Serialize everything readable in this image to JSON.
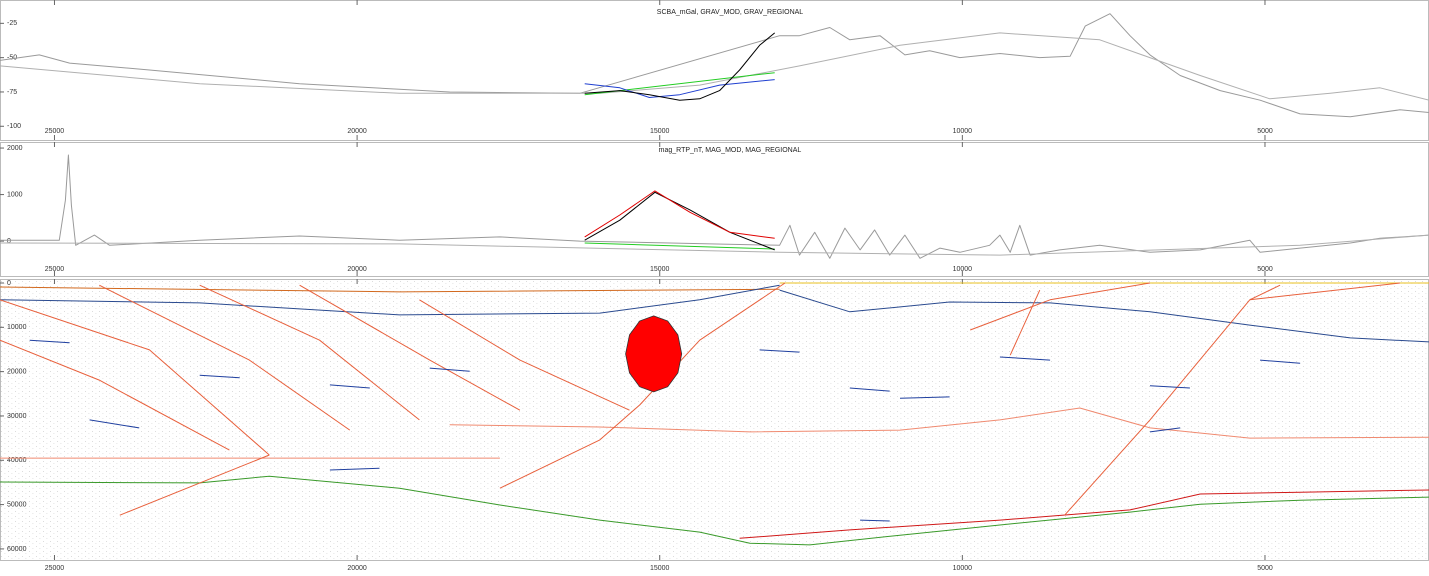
{
  "chart_data": [
    {
      "type": "line",
      "title": "SCBA_mGal, GRAV_MOD, GRAV_REGIONAL",
      "xlim": [
        25900,
        2290
      ],
      "xticks": [
        25000,
        20000,
        15000,
        10000,
        5000
      ],
      "ylim": [
        -110,
        -8
      ],
      "yticks": [
        -25,
        -50,
        -75,
        -100
      ],
      "series": [
        {
          "color": "#9a9a9a",
          "x": [
            25900,
            25250,
            24750,
            23430,
            20950,
            18470,
            16320,
            13020,
            12690,
            12190,
            11860,
            11360,
            10950,
            10540,
            10040,
            9380,
            8720,
            8220,
            7970,
            7560,
            7230,
            6900,
            6400,
            5740,
            5080,
            4420,
            3590,
            2770,
            2290
          ],
          "values": [
            -52,
            -48,
            -54,
            -59,
            -69,
            -75,
            -76,
            -34,
            -34,
            -28,
            -37,
            -34,
            -48,
            -45,
            -50,
            -47,
            -50,
            -49,
            -27,
            -18,
            -34,
            -48,
            -63,
            -74,
            -81,
            -91,
            -93,
            -88,
            -90
          ]
        },
        {
          "color": "#b0b0b0",
          "x": [
            25900,
            22600,
            19300,
            15990,
            14340,
            12690,
            11030,
            9380,
            7730,
            6070,
            4920,
            3920,
            3100,
            2290
          ],
          "values": [
            -56,
            -69,
            -76,
            -76,
            -70,
            -56,
            -41,
            -32,
            -37,
            -63,
            -80,
            -76,
            -72,
            -81
          ]
        },
        {
          "color": "#22cc22",
          "x": [
            16240,
            13100
          ],
          "values": [
            -77,
            -61
          ]
        },
        {
          "color": "#1f3fd0",
          "x": [
            16240,
            15660,
            15170,
            14670,
            14010,
            13100
          ],
          "values": [
            -69,
            -72,
            -79,
            -77,
            -70,
            -66
          ]
        },
        {
          "color": "#000000",
          "x": [
            16240,
            15660,
            15170,
            14670,
            14340,
            14010,
            13680,
            13350,
            13100
          ],
          "values": [
            -76,
            -74,
            -77,
            -81,
            -80,
            -74,
            -59,
            -41,
            -32
          ]
        }
      ]
    },
    {
      "type": "line",
      "title": "mag_RTP_nT, MAG_MOD, MAG_REGIONAL",
      "xlim": [
        25900,
        2290
      ],
      "xticks": [
        25000,
        20000,
        15000,
        10000,
        5000
      ],
      "ylim": [
        -750,
        2130
      ],
      "yticks": [
        0,
        1000,
        2000
      ],
      "series": [
        {
          "color": "#9a9a9a",
          "x": [
            25900,
            24920,
            24820,
            24770,
            24720,
            24650,
            24340,
            24090,
            22600,
            20950,
            19300,
            17640,
            16320,
            13020,
            12850,
            12690,
            12440,
            12190,
            11940,
            11690,
            11450,
            11200,
            10950,
            10700,
            10370,
            10040,
            9550,
            9380,
            9210,
            9050,
            8880,
            8390,
            7730,
            6900,
            6070,
            5250,
            5080,
            4420,
            3590,
            3100,
            2290
          ],
          "values": [
            20,
            20,
            880,
            1850,
            770,
            -90,
            130,
            -90,
            20,
            110,
            20,
            90,
            0,
            -90,
            340,
            -300,
            190,
            -370,
            280,
            -190,
            240,
            -300,
            130,
            -370,
            -150,
            -240,
            -90,
            130,
            -240,
            340,
            -300,
            -190,
            -90,
            -240,
            -190,
            20,
            -240,
            -150,
            -40,
            60,
            130
          ]
        },
        {
          "color": "#b0b0b0",
          "x": [
            25900,
            19300,
            13020,
            9380,
            4420,
            2290
          ],
          "values": [
            -40,
            -60,
            -240,
            -300,
            -90,
            130
          ]
        },
        {
          "color": "#22cc22",
          "x": [
            16240,
            13100
          ],
          "values": [
            -40,
            -170
          ]
        },
        {
          "color": "#000000",
          "x": [
            16240,
            15660,
            15080,
            14500,
            13840,
            13100
          ],
          "values": [
            20,
            450,
            1050,
            670,
            190,
            -190
          ]
        },
        {
          "color": "#e00000",
          "x": [
            16240,
            15660,
            15080,
            14500,
            13840,
            13100
          ],
          "values": [
            90,
            560,
            1080,
            620,
            190,
            60
          ]
        }
      ]
    },
    {
      "type": "section",
      "invert_y": true,
      "xlim": [
        25900,
        2290
      ],
      "xticks": [
        25000,
        20000,
        15000,
        10000,
        5000
      ],
      "ylim": [
        -900,
        62500
      ],
      "yticks": [
        0,
        10000,
        20000,
        30000,
        40000,
        50000,
        60000
      ],
      "series": [
        {
          "color": "#e8c020",
          "x": [
            13020,
            2290
          ],
          "values": [
            0,
            0
          ]
        },
        {
          "color": "#d2691e",
          "x": [
            25900,
            19300,
            13020
          ],
          "values": [
            900,
            2000,
            1400
          ]
        },
        {
          "color": "#2a4a8f",
          "x": [
            25900,
            22600,
            19300,
            15990,
            14340,
            13020
          ],
          "values": [
            3800,
            4500,
            7200,
            6800,
            3800,
            500
          ]
        },
        {
          "color": "#2a4a8f",
          "x": [
            13020,
            11860,
            10210,
            8550,
            6900,
            5250,
            3590,
            2290
          ],
          "values": [
            1600,
            6500,
            4300,
            4500,
            6500,
            9500,
            12400,
            13300
          ]
        },
        {
          "color": "#3a9a2a",
          "x": [
            25900,
            22600,
            21450,
            19300,
            17640,
            15990,
            14340,
            13510,
            12520,
            11030,
            9380,
            7230,
            6070,
            4420,
            2290
          ],
          "values": [
            44900,
            45100,
            43600,
            46300,
            50100,
            53500,
            56200,
            58700,
            59100,
            56900,
            54600,
            51700,
            49900,
            49000,
            48300
          ]
        },
        {
          "color": "#d01818",
          "x": [
            13680,
            11860,
            9380,
            7230,
            6070,
            4420,
            2290
          ],
          "values": [
            57600,
            55700,
            53500,
            51200,
            47600,
            47200,
            46700
          ]
        },
        {
          "color": "#f08a70",
          "x": [
            18470,
            15990,
            13510,
            11030,
            9380,
            8060,
            6900,
            5250,
            2290
          ],
          "values": [
            32000,
            32500,
            33600,
            33200,
            30900,
            28200,
            32700,
            35000,
            34800
          ]
        },
        {
          "color": "#f08a70",
          "x": [
            25900,
            17640
          ],
          "values": [
            39500,
            39500
          ]
        },
        {
          "color": "#e8603c",
          "x": [
            17640,
            15990,
            15330,
            14340,
            12930
          ],
          "values": [
            46300,
            35400,
            27500,
            12900,
            0
          ]
        },
        {
          "color": "#e8603c",
          "x": [
            23920,
            21450
          ],
          "values": [
            52400,
            38800
          ]
        },
        {
          "color": "#e8603c",
          "x": [
            8310,
            6900,
            5250,
            4750
          ],
          "values": [
            52400,
            30900,
            3800,
            500
          ]
        },
        {
          "color": "#e8603c",
          "x": [
            25900,
            23430,
            21450
          ],
          "values": [
            3800,
            15100,
            38800
          ]
        },
        {
          "color": "#e8603c",
          "x": [
            24260,
            21780,
            20120
          ],
          "values": [
            500,
            17400,
            33200
          ]
        },
        {
          "color": "#e8603c",
          "x": [
            22600,
            20620,
            18970
          ],
          "values": [
            500,
            12900,
            30900
          ]
        },
        {
          "color": "#e8603c",
          "x": [
            20950,
            18800,
            17310
          ],
          "values": [
            500,
            17400,
            28700
          ]
        },
        {
          "color": "#e8603c",
          "x": [
            18970,
            17310,
            15500
          ],
          "values": [
            3800,
            17400,
            28700
          ]
        },
        {
          "color": "#e8603c",
          "x": [
            25900,
            24260,
            22110
          ],
          "values": [
            12900,
            21900,
            37700
          ]
        },
        {
          "color": "#e8603c",
          "x": [
            9870,
            8550,
            6900
          ],
          "values": [
            10600,
            3800,
            0
          ]
        },
        {
          "color": "#e8603c",
          "x": [
            9210,
            8720
          ],
          "values": [
            16300,
            1600
          ]
        },
        {
          "color": "#e8603c",
          "x": [
            5250,
            2770
          ],
          "values": [
            3800,
            0
          ]
        },
        {
          "color": "#1f3f9f",
          "x": [
            25410,
            24750
          ],
          "values": [
            12900,
            13500
          ]
        },
        {
          "color": "#1f3f9f",
          "x": [
            22600,
            21940
          ],
          "values": [
            20800,
            21400
          ]
        },
        {
          "color": "#1f3f9f",
          "x": [
            20450,
            19790
          ],
          "values": [
            23000,
            23700
          ]
        },
        {
          "color": "#1f3f9f",
          "x": [
            18800,
            18140
          ],
          "values": [
            19200,
            19900
          ]
        },
        {
          "color": "#1f3f9f",
          "x": [
            24420,
            23600
          ],
          "values": [
            30900,
            32700
          ]
        },
        {
          "color": "#1f3f9f",
          "x": [
            13350,
            12690
          ],
          "values": [
            15100,
            15600
          ]
        },
        {
          "color": "#1f3f9f",
          "x": [
            11860,
            11200
          ],
          "values": [
            23700,
            24400
          ]
        },
        {
          "color": "#1f3f9f",
          "x": [
            11030,
            10210
          ],
          "values": [
            26000,
            25700
          ]
        },
        {
          "color": "#1f3f9f",
          "x": [
            9380,
            8550
          ],
          "values": [
            16700,
            17400
          ]
        },
        {
          "color": "#1f3f9f",
          "x": [
            6900,
            6240
          ],
          "values": [
            23200,
            23700
          ]
        },
        {
          "color": "#1f3f9f",
          "x": [
            5080,
            4420
          ],
          "values": [
            17400,
            18100
          ]
        },
        {
          "color": "#1f3f9f",
          "x": [
            11690,
            11200
          ],
          "values": [
            53500,
            53700
          ]
        },
        {
          "color": "#1f3f9f",
          "x": [
            20450,
            19630
          ],
          "values": [
            42200,
            41800
          ]
        },
        {
          "color": "#1f3f9f",
          "x": [
            6900,
            6400
          ],
          "values": [
            33600,
            32700
          ]
        },
        {
          "color": "#ff0000",
          "closed": true,
          "x": [
            14637,
            14700,
            14869,
            15100,
            15331,
            15500,
            15563,
            15500,
            15331,
            15100,
            14869,
            14700
          ],
          "values": [
            16000,
            20290,
            23430,
            24580,
            23430,
            20290,
            16000,
            11710,
            8570,
            7420,
            8570,
            11710
          ]
        }
      ]
    }
  ]
}
